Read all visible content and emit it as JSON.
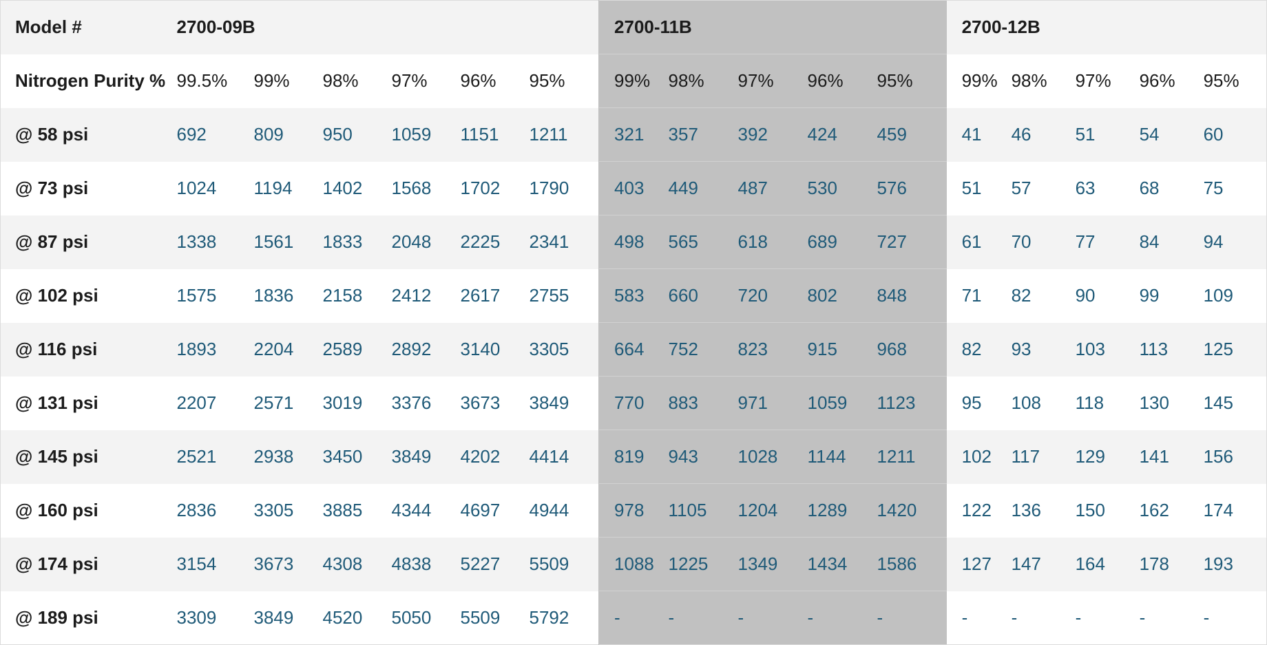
{
  "table": {
    "row_label_header": "Model #",
    "purity_label": "Nitrogen Purity %",
    "models": [
      {
        "name": "2700-09B",
        "purities": [
          "99.5%",
          "99%",
          "98%",
          "97%",
          "96%",
          "95%"
        ]
      },
      {
        "name": "2700-11B",
        "purities": [
          "99%",
          "98%",
          "97%",
          "96%",
          "95%"
        ]
      },
      {
        "name": "2700-12B",
        "purities": [
          "99%",
          "98%",
          "97%",
          "96%",
          "95%"
        ]
      }
    ],
    "rows": [
      {
        "pressure": "@ 58 psi",
        "values": [
          "692",
          "809",
          "950",
          "1059",
          "1151",
          "1211",
          "321",
          "357",
          "392",
          "424",
          "459",
          "41",
          "46",
          "51",
          "54",
          "60"
        ]
      },
      {
        "pressure": "@ 73 psi",
        "values": [
          "1024",
          "1194",
          "1402",
          "1568",
          "1702",
          "1790",
          "403",
          "449",
          "487",
          "530",
          "576",
          "51",
          "57",
          "63",
          "68",
          "75"
        ]
      },
      {
        "pressure": "@ 87 psi",
        "values": [
          "1338",
          "1561",
          "1833",
          "2048",
          "2225",
          "2341",
          "498",
          "565",
          "618",
          "689",
          "727",
          "61",
          "70",
          "77",
          "84",
          "94"
        ]
      },
      {
        "pressure": "@ 102 psi",
        "values": [
          "1575",
          "1836",
          "2158",
          "2412",
          "2617",
          "2755",
          "583",
          "660",
          "720",
          "802",
          "848",
          "71",
          "82",
          "90",
          "99",
          "109"
        ]
      },
      {
        "pressure": "@ 116 psi",
        "values": [
          "1893",
          "2204",
          "2589",
          "2892",
          "3140",
          "3305",
          "664",
          "752",
          "823",
          "915",
          "968",
          "82",
          "93",
          "103",
          "113",
          "125"
        ]
      },
      {
        "pressure": "@ 131 psi",
        "values": [
          "2207",
          "2571",
          "3019",
          "3376",
          "3673",
          "3849",
          "770",
          "883",
          "971",
          "1059",
          "1123",
          "95",
          "108",
          "118",
          "130",
          "145"
        ]
      },
      {
        "pressure": "@ 145 psi",
        "values": [
          "2521",
          "2938",
          "3450",
          "3849",
          "4202",
          "4414",
          "819",
          "943",
          "1028",
          "1144",
          "1211",
          "102",
          "117",
          "129",
          "141",
          "156"
        ]
      },
      {
        "pressure": "@ 160 psi",
        "values": [
          "2836",
          "3305",
          "3885",
          "4344",
          "4697",
          "4944",
          "978",
          "1105",
          "1204",
          "1289",
          "1420",
          "122",
          "136",
          "150",
          "162",
          "174"
        ]
      },
      {
        "pressure": "@ 174 psi",
        "values": [
          "3154",
          "3673",
          "4308",
          "4838",
          "5227",
          "5509",
          "1088",
          "1225",
          "1349",
          "1434",
          "1586",
          "127",
          "147",
          "164",
          "178",
          "193"
        ]
      },
      {
        "pressure": "@ 189 psi",
        "values": [
          "3309",
          "3849",
          "4520",
          "5050",
          "5509",
          "5792",
          "-",
          "-",
          "-",
          "-",
          "-",
          "-",
          "-",
          "-",
          "-",
          "-"
        ]
      }
    ]
  },
  "colors": {
    "header_text": "#1b1b1b",
    "value_text": "#1f5a78",
    "stripe": "#f3f3f3",
    "highlight_group": "#c1c1c1"
  }
}
